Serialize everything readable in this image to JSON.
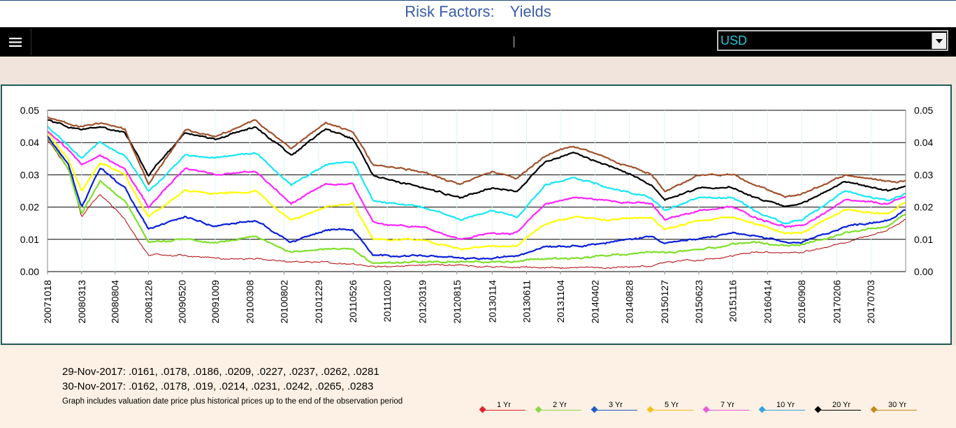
{
  "header": {
    "title_part1": "Risk Factors:",
    "title_part2": "Yields"
  },
  "toolbar": {
    "menu_icon": "hamburger-menu-icon",
    "currency_selected": "USD",
    "dropdown_icon": "chevron-down-icon"
  },
  "colors": {
    "title": "#3a5bab",
    "panel_border": "#1e5c5a",
    "toolbar": "#000000",
    "currency_text": "#26c6da"
  },
  "chart_data": {
    "type": "line",
    "y_ticks": [
      "0.05",
      "0.04",
      "0.03",
      "0.02",
      "0.01",
      "0.00"
    ],
    "ylim": [
      0,
      0.05
    ],
    "dual_y_axis": true,
    "grid": "horizontal",
    "x_tick_labels": [
      "20071018",
      "20080313",
      "20080804",
      "20081226",
      "20090520",
      "20091009",
      "20100308",
      "20100802",
      "20101229",
      "20110526",
      "20111020",
      "20120319",
      "20120815",
      "20130114",
      "20130611",
      "20131104",
      "20140402",
      "20140828",
      "20150127",
      "20150623",
      "20151116",
      "20160414",
      "20160908",
      "20170206",
      "20170703"
    ],
    "x_range": [
      "2007-10-18",
      "2017-11-30"
    ],
    "legend_position": "bottom-right",
    "anchors": [
      "2007-10-18",
      "2008-01-15",
      "2008-03-13",
      "2008-06-01",
      "2008-09-15",
      "2008-12-26",
      "2009-06-01",
      "2009-10-09",
      "2010-04-01",
      "2010-09-01",
      "2011-01-29",
      "2011-05-26",
      "2011-08-20",
      "2012-03-19",
      "2012-09-01",
      "2013-01-14",
      "2013-05-01",
      "2013-09-01",
      "2013-12-31",
      "2014-06-01",
      "2014-12-01",
      "2015-01-27",
      "2015-06-23",
      "2015-11-16",
      "2016-02-15",
      "2016-06-30",
      "2016-09-08",
      "2017-03-15",
      "2017-09-15",
      "2017-11-30"
    ],
    "series": [
      {
        "name": "1 Yr",
        "color": "#b00000",
        "values": [
          0.041,
          0.032,
          0.017,
          0.024,
          0.016,
          0.005,
          0.005,
          0.004,
          0.004,
          0.003,
          0.003,
          0.0025,
          0.0015,
          0.002,
          0.002,
          0.0015,
          0.0013,
          0.0013,
          0.0013,
          0.0012,
          0.0017,
          0.003,
          0.0035,
          0.005,
          0.006,
          0.006,
          0.006,
          0.009,
          0.013,
          0.0162
        ]
      },
      {
        "name": "2 Yr",
        "color": "#7fe02a",
        "values": [
          0.0415,
          0.032,
          0.018,
          0.028,
          0.022,
          0.009,
          0.01,
          0.009,
          0.011,
          0.006,
          0.007,
          0.007,
          0.0025,
          0.003,
          0.003,
          0.003,
          0.003,
          0.004,
          0.004,
          0.005,
          0.006,
          0.006,
          0.0065,
          0.0085,
          0.009,
          0.008,
          0.008,
          0.012,
          0.014,
          0.0178
        ]
      },
      {
        "name": "3 Yr",
        "color": "#0a1fd8",
        "values": [
          0.042,
          0.033,
          0.02,
          0.032,
          0.026,
          0.013,
          0.017,
          0.014,
          0.016,
          0.009,
          0.013,
          0.013,
          0.005,
          0.005,
          0.004,
          0.004,
          0.005,
          0.008,
          0.008,
          0.009,
          0.011,
          0.009,
          0.01,
          0.012,
          0.011,
          0.009,
          0.009,
          0.014,
          0.016,
          0.019
        ]
      },
      {
        "name": "5 Yr",
        "color": "#ffff00",
        "values": [
          0.043,
          0.035,
          0.025,
          0.034,
          0.03,
          0.017,
          0.025,
          0.024,
          0.025,
          0.016,
          0.02,
          0.021,
          0.01,
          0.01,
          0.007,
          0.008,
          0.008,
          0.015,
          0.017,
          0.016,
          0.017,
          0.013,
          0.016,
          0.017,
          0.015,
          0.012,
          0.012,
          0.019,
          0.018,
          0.0214
        ]
      },
      {
        "name": "7 Yr",
        "color": "#ff24ff",
        "values": [
          0.0435,
          0.038,
          0.033,
          0.036,
          0.032,
          0.02,
          0.032,
          0.03,
          0.031,
          0.021,
          0.027,
          0.027,
          0.015,
          0.014,
          0.01,
          0.012,
          0.012,
          0.021,
          0.023,
          0.022,
          0.021,
          0.016,
          0.019,
          0.02,
          0.017,
          0.014,
          0.014,
          0.022,
          0.021,
          0.0231
        ]
      },
      {
        "name": "10 Yr",
        "color": "#18e6f5",
        "values": [
          0.045,
          0.039,
          0.035,
          0.04,
          0.036,
          0.025,
          0.036,
          0.035,
          0.037,
          0.027,
          0.033,
          0.034,
          0.022,
          0.02,
          0.016,
          0.019,
          0.017,
          0.027,
          0.029,
          0.026,
          0.023,
          0.019,
          0.023,
          0.023,
          0.019,
          0.015,
          0.016,
          0.025,
          0.022,
          0.0242
        ]
      },
      {
        "name": "20 Yr",
        "color": "#000000",
        "values": [
          0.047,
          0.045,
          0.044,
          0.045,
          0.043,
          0.03,
          0.043,
          0.041,
          0.045,
          0.036,
          0.044,
          0.041,
          0.03,
          0.026,
          0.023,
          0.026,
          0.025,
          0.034,
          0.037,
          0.033,
          0.027,
          0.022,
          0.026,
          0.026,
          0.023,
          0.02,
          0.021,
          0.028,
          0.025,
          0.0265
        ]
      },
      {
        "name": "30 Yr",
        "color": "#a0522d",
        "values": [
          0.048,
          0.046,
          0.045,
          0.046,
          0.044,
          0.027,
          0.044,
          0.042,
          0.047,
          0.038,
          0.046,
          0.043,
          0.033,
          0.031,
          0.027,
          0.031,
          0.029,
          0.036,
          0.039,
          0.035,
          0.03,
          0.025,
          0.03,
          0.03,
          0.027,
          0.023,
          0.024,
          0.03,
          0.028,
          0.0283
        ]
      }
    ]
  },
  "info": {
    "line1": "29-Nov-2017: .0161, .0178, .0186, .0209, .0227, .0237, .0262, .0281",
    "line2": "30-Nov-2017: .0162, .0178, .019, .0214, .0231, .0242, .0265, .0283",
    "note": "Graph includes valuation date price plus historical prices up to the end of the observation period"
  },
  "legend": [
    {
      "label": "1 Yr",
      "color": "#e0202a",
      "marker_color": "#e0202a"
    },
    {
      "label": "2 Yr",
      "color": "#8bd64e",
      "marker_color": "#8bd64e"
    },
    {
      "label": "3 Yr",
      "color": "#1f5ec8",
      "marker_color": "#1f5ec8"
    },
    {
      "label": "5 Yr",
      "color": "#f2c21a",
      "marker_color": "#f2c21a"
    },
    {
      "label": "7 Yr",
      "color": "#e85ad8",
      "marker_color": "#e85ad8"
    },
    {
      "label": "10 Yr",
      "color": "#33a3e0",
      "marker_color": "#33a3e0"
    },
    {
      "label": "20 Yr",
      "color": "#000000",
      "marker_color": "#000000"
    },
    {
      "label": "30 Yr",
      "color": "#c48a1a",
      "marker_color": "#c48a1a"
    }
  ]
}
